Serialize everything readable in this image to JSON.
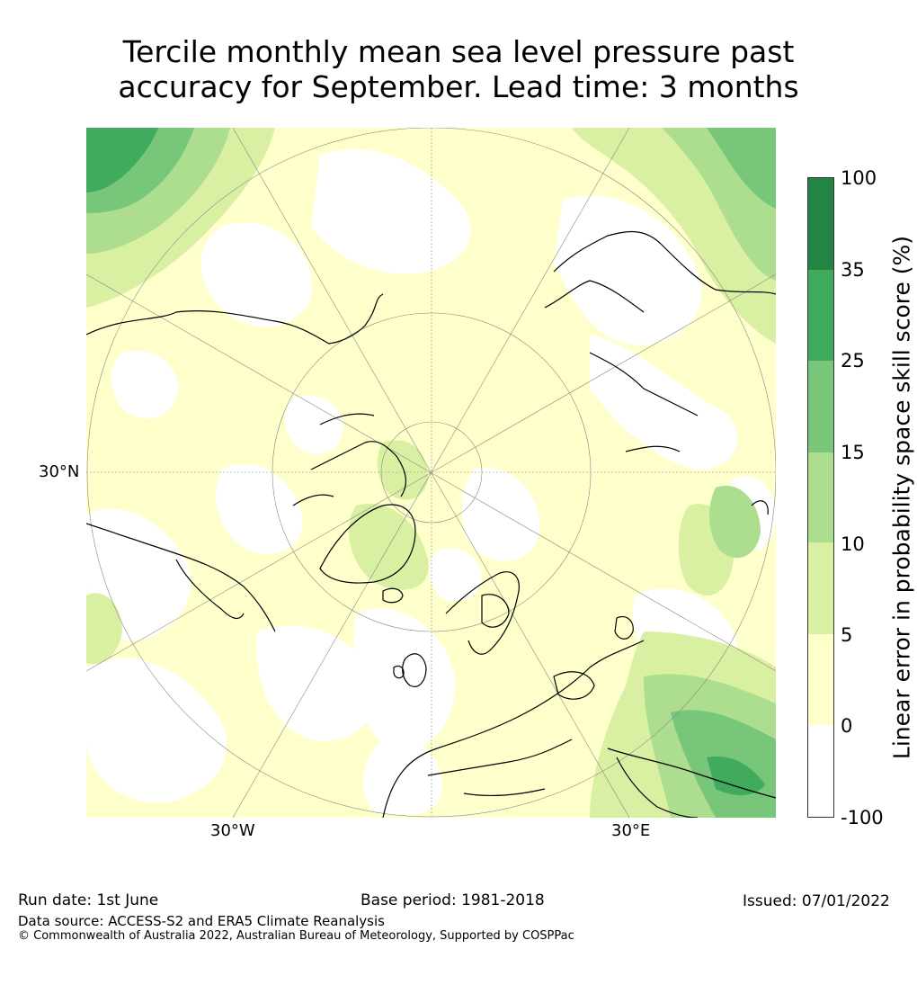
{
  "title_line1": "Tercile monthly mean sea level pressure past",
  "title_line2": "accuracy for September. Lead time: 3 months",
  "map": {
    "lat_label": "30°N",
    "lon_labels": [
      "30°W",
      "30°E"
    ],
    "colors": {
      "white": "#ffffff",
      "pale_yellow": "#ffffcc",
      "light_green": "#d9f0a3",
      "green2": "#addd8e",
      "green3": "#78c679",
      "green4": "#41ab5d",
      "dark_green": "#238443"
    }
  },
  "colorbar": {
    "title": "Linear error in probability space skill score (%)",
    "ticks": [
      "100",
      "35",
      "25",
      "15",
      "10",
      "5",
      "0",
      "-100"
    ],
    "colors": [
      "#238443",
      "#41ab5d",
      "#78c679",
      "#addd8e",
      "#d9f0a3",
      "#ffffcc",
      "#ffffff"
    ]
  },
  "footer": {
    "run_date": "Run date: 1st June",
    "base_period": "Base period: 1981-2018",
    "issued": "Issued: 07/01/2022",
    "data_source": "Data source: ACCESS-S2 and ERA5 Climate Reanalysis",
    "copyright": "© Commonwealth of Australia 2022, Australian Bureau of Meteorology, Supported by COSPPac"
  }
}
